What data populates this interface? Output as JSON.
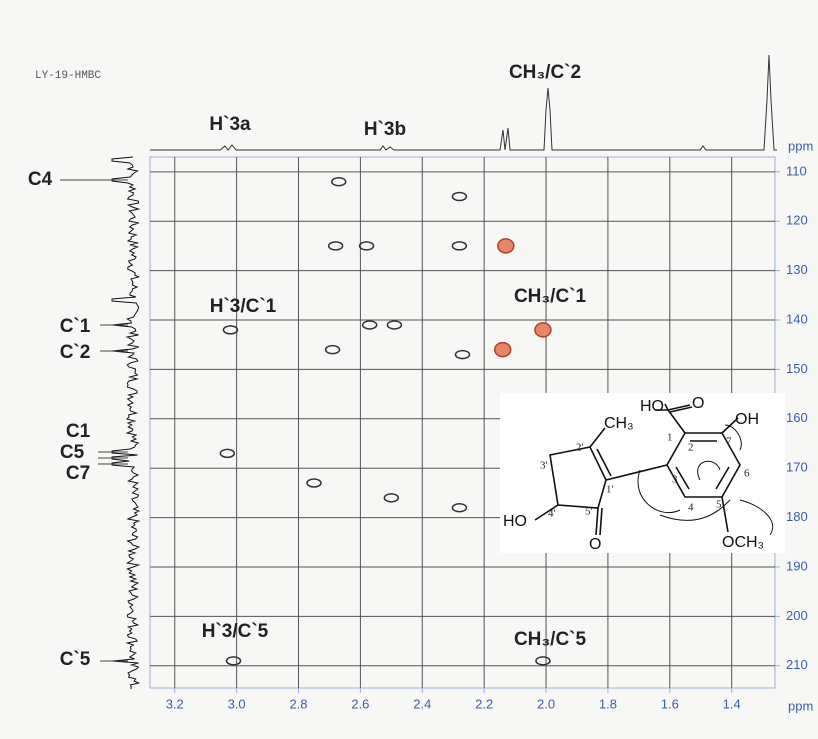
{
  "chart_data": {
    "type": "scatter",
    "title": "LY-19-HMBC",
    "x_label": "ppm",
    "y_label": "ppm",
    "xlim": [
      3.28,
      1.26
    ],
    "ylim": [
      214.5,
      107
    ],
    "xticks": [
      3.2,
      {
        "value": 3,
        "label": "3.0"
      },
      2.8,
      2.6,
      2.4,
      2.2,
      {
        "value": 2,
        "label": "2.0"
      },
      1.8,
      1.6,
      1.4
    ],
    "yticks": [
      110,
      120,
      130,
      140,
      150,
      160,
      170,
      180,
      190,
      200,
      210
    ],
    "grid": true,
    "series": [
      {
        "color": "#333333",
        "x": [
          2.67,
          2.28,
          2.28,
          2.68,
          2.58,
          3.02,
          2.57,
          2.49,
          2.27,
          2.69,
          3.03,
          2.75,
          2.5,
          2.28,
          3.01,
          2.01
        ],
        "values": [
          112,
          115,
          125,
          125,
          125,
          142,
          141,
          141,
          147,
          146,
          167,
          173,
          176,
          178,
          209,
          209
        ]
      },
      {
        "color": "#e8866a",
        "x": [
          2.13,
          2.01,
          2.14
        ],
        "values": [
          125,
          142,
          146
        ]
      }
    ],
    "annotations": [
      "H`3a",
      "H`3b",
      "CH₃/C`2",
      "C4",
      "C`1",
      "C`2",
      "C1",
      "C5",
      "C7",
      "C`5",
      "H`3/C`1",
      "CH₃/C`1",
      "H`3/C`5",
      "CH₃/C`5"
    ]
  },
  "structure": {
    "labels": [
      "HO",
      "O",
      "OH",
      "CH₃",
      "HO",
      "O",
      "OCH₃",
      "1",
      "2",
      "3",
      "4",
      "5",
      "6",
      "7",
      "1'",
      "2'",
      "3'",
      "4'",
      "5'"
    ]
  }
}
